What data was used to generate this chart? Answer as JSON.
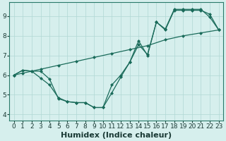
{
  "xlabel": "Humidex (Indice chaleur)",
  "bg_color": "#d6efed",
  "grid_color": "#b0d8d4",
  "line_color": "#1a6b5a",
  "xlim": [
    -0.5,
    23.5
  ],
  "ylim": [
    3.7,
    9.7
  ],
  "xticks": [
    0,
    1,
    2,
    3,
    4,
    5,
    6,
    7,
    8,
    9,
    10,
    11,
    12,
    13,
    14,
    15,
    16,
    17,
    18,
    19,
    20,
    21,
    22,
    23
  ],
  "yticks": [
    4,
    5,
    6,
    7,
    8,
    9
  ],
  "line1_x": [
    0,
    1,
    2,
    3,
    4,
    5,
    6,
    7,
    8,
    9,
    10,
    11,
    12,
    13,
    14,
    15,
    16,
    17,
    18,
    19,
    20,
    21,
    22,
    23
  ],
  "line1_y": [
    6.0,
    6.25,
    6.2,
    6.2,
    5.8,
    4.8,
    4.65,
    4.6,
    4.6,
    4.35,
    4.35,
    5.5,
    6.0,
    6.65,
    7.75,
    7.0,
    8.7,
    8.3,
    9.3,
    9.3,
    9.3,
    9.3,
    9.1,
    8.3
  ],
  "line2_x": [
    0,
    1,
    2,
    3,
    4,
    5,
    6,
    7,
    8,
    9,
    10,
    11,
    12,
    13,
    14,
    15,
    16,
    17,
    18,
    19,
    20,
    21,
    22,
    23
  ],
  "line2_y": [
    6.0,
    6.25,
    6.2,
    5.85,
    5.5,
    4.85,
    4.65,
    4.6,
    4.6,
    4.35,
    4.35,
    5.1,
    5.9,
    6.65,
    7.55,
    7.05,
    8.7,
    8.35,
    9.35,
    9.35,
    9.35,
    9.35,
    8.95,
    8.3
  ],
  "line3_x": [
    0,
    1,
    2,
    3,
    5,
    7,
    9,
    11,
    13,
    15,
    17,
    19,
    21,
    23
  ],
  "line3_y": [
    6.0,
    6.1,
    6.2,
    6.3,
    6.5,
    6.7,
    6.9,
    7.1,
    7.3,
    7.5,
    7.8,
    8.0,
    8.15,
    8.3
  ],
  "marker_size": 2.5,
  "line_width": 0.9,
  "xlabel_fontsize": 8,
  "tick_fontsize": 6.5
}
